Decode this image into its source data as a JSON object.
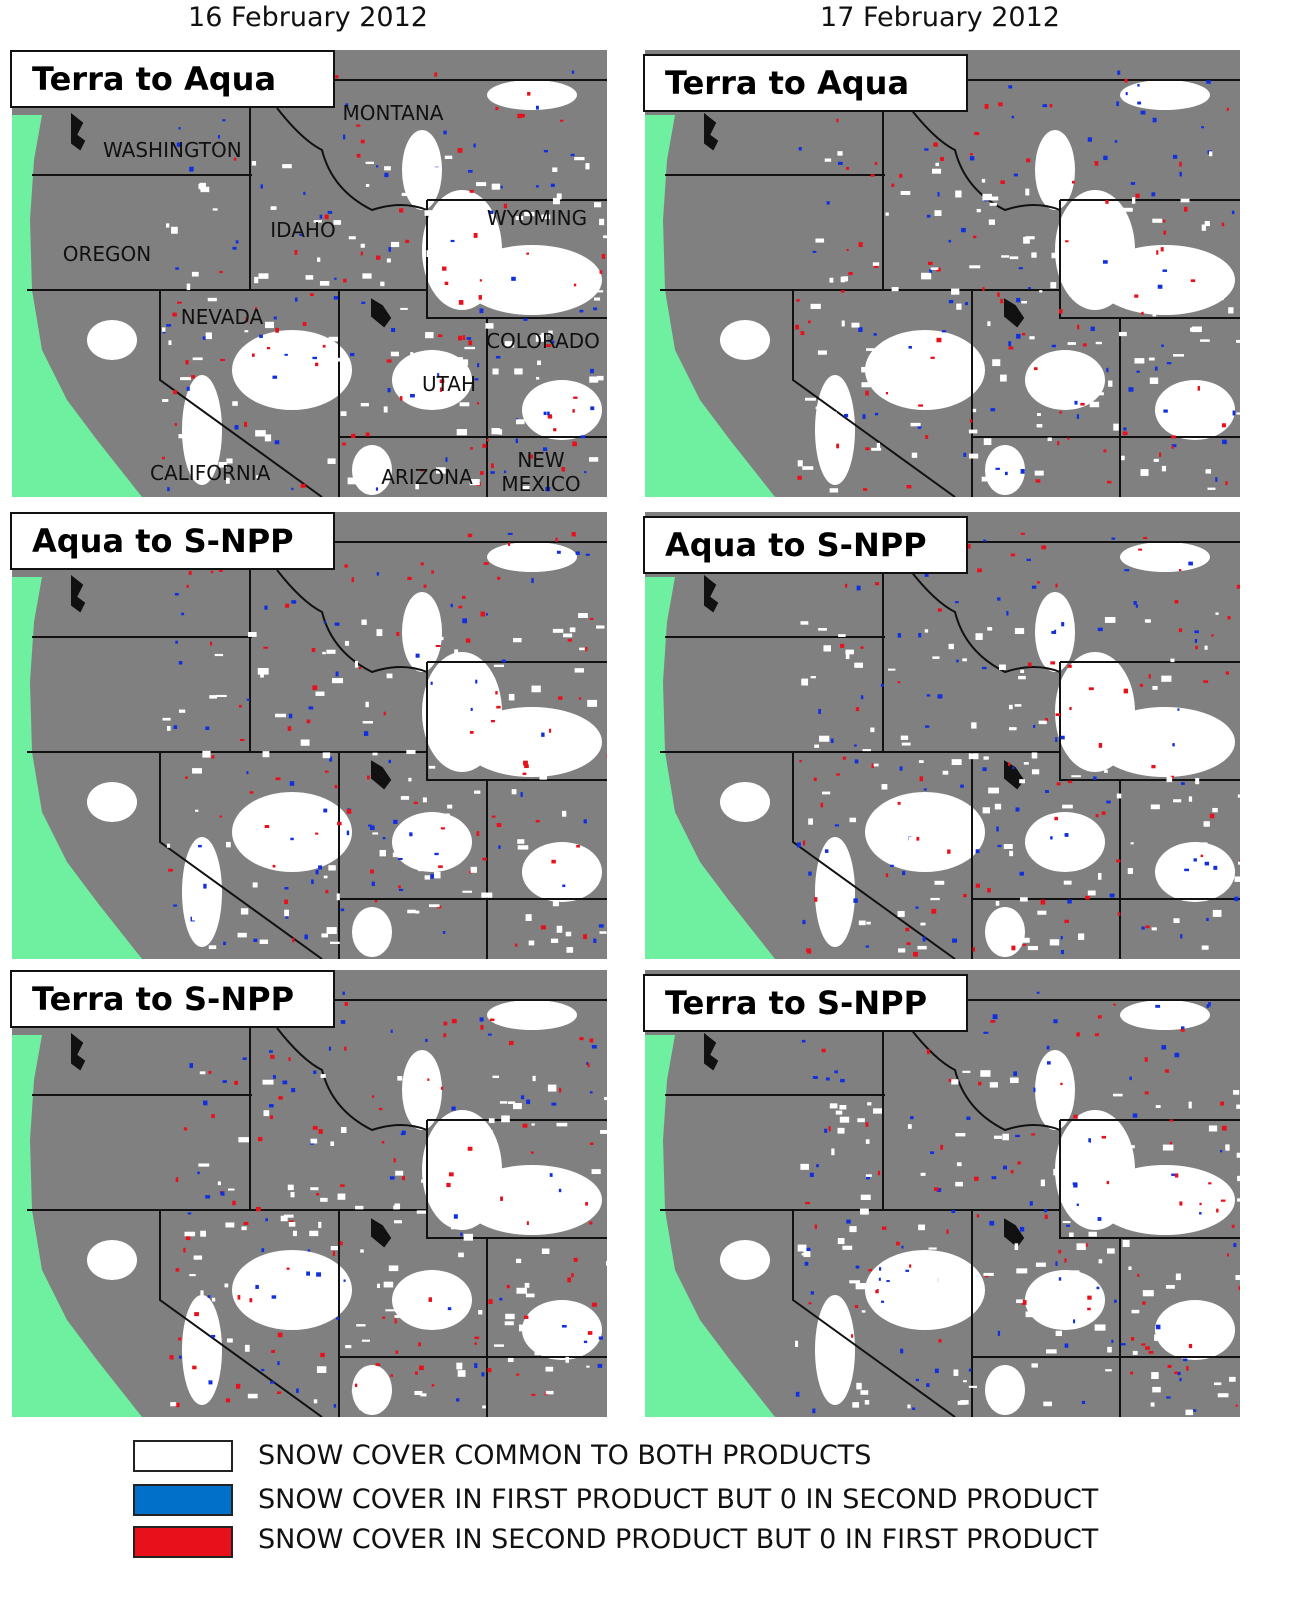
{
  "columns": [
    "16 February 2012",
    "17 February 2012"
  ],
  "panels": [
    {
      "label": "Terra to Aqua",
      "state_labels": [
        "MONTANA",
        "WASHINGTON",
        "IDAHO",
        "WYOMING",
        "OREGON",
        "NEVADA",
        "COLORADO",
        "UTAH",
        "CALIFORNIA",
        "ARIZONA",
        "NEW MEXICO"
      ]
    },
    {
      "label": "Terra to Aqua"
    },
    {
      "label": "Aqua to S-NPP"
    },
    {
      "label": "Aqua to S-NPP"
    },
    {
      "label": "Terra to S-NPP"
    },
    {
      "label": "Terra to S-NPP"
    }
  ],
  "legend": [
    "SNOW COVER COMMON TO BOTH PRODUCTS",
    "SNOW COVER IN FIRST  PRODUCT BUT 0 IN SECOND PRODUCT",
    "SNOW COVER IN SECOND PRODUCT BUT 0 IN FIRST PRODUCT"
  ]
}
